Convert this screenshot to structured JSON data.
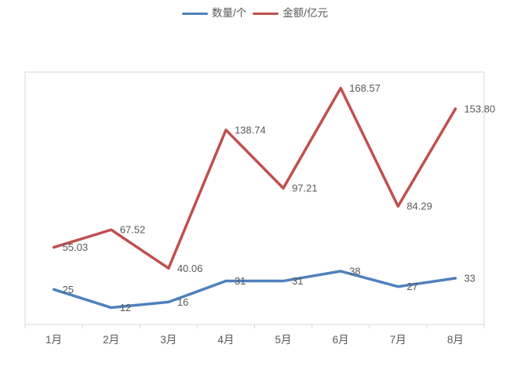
{
  "legend": {
    "items": [
      {
        "id": "quantity",
        "label": "数量/个",
        "color": "#4F81BD"
      },
      {
        "id": "amount",
        "label": "金额/亿元",
        "color": "#C0504D"
      }
    ]
  },
  "chart_data": {
    "type": "line",
    "title": "",
    "xlabel": "",
    "ylabel": "",
    "categories": [
      "1月",
      "2月",
      "3月",
      "4月",
      "5月",
      "6月",
      "7月",
      "8月"
    ],
    "series": [
      {
        "id": "quantity",
        "name": "数量/个",
        "color": "#4F81BD",
        "values": [
          25,
          12,
          16,
          31,
          31,
          38,
          27,
          33
        ],
        "labels": [
          "25",
          "12",
          "16",
          "31",
          "31",
          "38",
          "27",
          "33"
        ]
      },
      {
        "id": "amount",
        "name": "金额/亿元",
        "color": "#C0504D",
        "values": [
          55.03,
          67.52,
          40.06,
          138.74,
          97.21,
          168.57,
          84.29,
          153.8
        ],
        "labels": [
          "55.03",
          "67.52",
          "40.06",
          "138.74",
          "97.21",
          "168.57",
          "84.29",
          "153.80"
        ]
      }
    ],
    "ylim": [
      0,
      180
    ],
    "grid": false,
    "legend_position": "top-center",
    "colors": {
      "plot_border": "#D9D9D9",
      "axis_tick": "#D9D9D9",
      "label_text": "#595959"
    }
  }
}
